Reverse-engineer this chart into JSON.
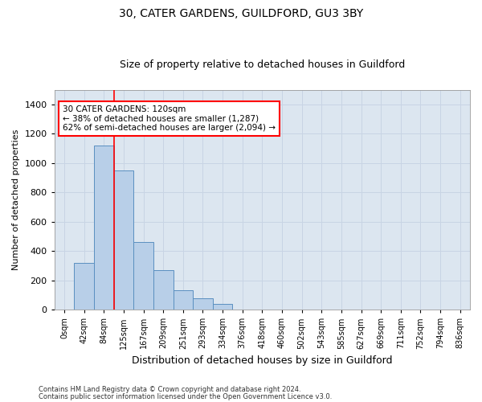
{
  "title1": "30, CATER GARDENS, GUILDFORD, GU3 3BY",
  "title2": "Size of property relative to detached houses in Guildford",
  "xlabel": "Distribution of detached houses by size in Guildford",
  "ylabel": "Number of detached properties",
  "categories": [
    "0sqm",
    "42sqm",
    "84sqm",
    "125sqm",
    "167sqm",
    "209sqm",
    "251sqm",
    "293sqm",
    "334sqm",
    "376sqm",
    "418sqm",
    "460sqm",
    "502sqm",
    "543sqm",
    "585sqm",
    "627sqm",
    "669sqm",
    "711sqm",
    "752sqm",
    "794sqm",
    "836sqm"
  ],
  "bar_values": [
    0,
    320,
    1120,
    950,
    460,
    270,
    130,
    80,
    40,
    0,
    0,
    0,
    0,
    0,
    0,
    0,
    0,
    0,
    0,
    0,
    0
  ],
  "bar_color": "#b8cfe8",
  "bar_edge_color": "#5a8fc0",
  "grid_color": "#c8d4e4",
  "background_color": "#dce6f0",
  "vline_color": "red",
  "vline_pos": 2.5,
  "ylim": [
    0,
    1500
  ],
  "yticks": [
    0,
    200,
    400,
    600,
    800,
    1000,
    1200,
    1400
  ],
  "annotation_title": "30 CATER GARDENS: 120sqm",
  "annotation_line1": "← 38% of detached houses are smaller (1,287)",
  "annotation_line2": "62% of semi-detached houses are larger (2,094) →",
  "footer1": "Contains HM Land Registry data © Crown copyright and database right 2024.",
  "footer2": "Contains public sector information licensed under the Open Government Licence v3.0.",
  "title1_fontsize": 10,
  "title2_fontsize": 9,
  "ylabel_fontsize": 8,
  "xlabel_fontsize": 9
}
